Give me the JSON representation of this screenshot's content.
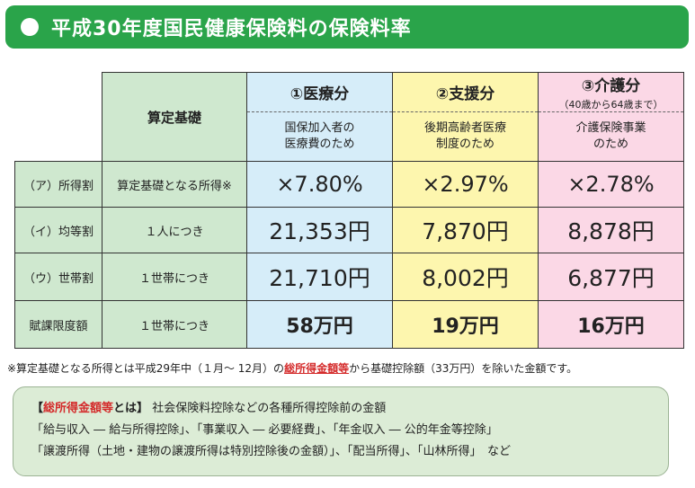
{
  "header": {
    "title": "平成30年度国民健康保険料の保険料率"
  },
  "table": {
    "basis_header": "算定基礎",
    "columns": [
      {
        "title": "①医療分",
        "subtitle": "",
        "desc_line1": "国保加入者の",
        "desc_line2": "医療費のため"
      },
      {
        "title": "②支援分",
        "subtitle": "",
        "desc_line1": "後期高齢者医療",
        "desc_line2": "制度のため"
      },
      {
        "title": "③介護分",
        "subtitle": "（40歳から64歳まで）",
        "desc_line1": "介護保険事業",
        "desc_line2": "のため"
      }
    ],
    "rows": [
      {
        "label": "（ア）所得割",
        "basis": "算定基礎となる所得※",
        "values": [
          "×7.80%",
          "×2.97%",
          "×2.78%"
        ]
      },
      {
        "label": "（イ）均等割",
        "basis": "１人につき",
        "values": [
          "21,353円",
          "7,870円",
          "8,878円"
        ]
      },
      {
        "label": "（ウ）世帯割",
        "basis": "１世帯につき",
        "values": [
          "21,710円",
          "8,002円",
          "6,877円"
        ]
      },
      {
        "label": "賦課限度額",
        "basis": "１世帯につき",
        "values": [
          "58万円",
          "19万円",
          "16万円"
        ]
      }
    ]
  },
  "footnote": {
    "before": "※算定基礎となる所得とは平成29年中（１月～ 12月）の",
    "emphasis": "総所得金額等",
    "after": "から基礎控除額（33万円）を除いた金額です。"
  },
  "definition": {
    "bracket_open": "【",
    "term": "総所得金額等",
    "term_suffix": "とは】",
    "text": "社会保険料控除などの各種所得控除前の金額",
    "line2": "「給与収入 ― 給与所得控除」、「事業収入 ― 必要経費」、「年金収入 ― 公的年金等控除」",
    "line3": "「譲渡所得（土地・建物の譲渡所得は特別控除後の金額）」、「配当所得」、「山林所得」　など"
  }
}
